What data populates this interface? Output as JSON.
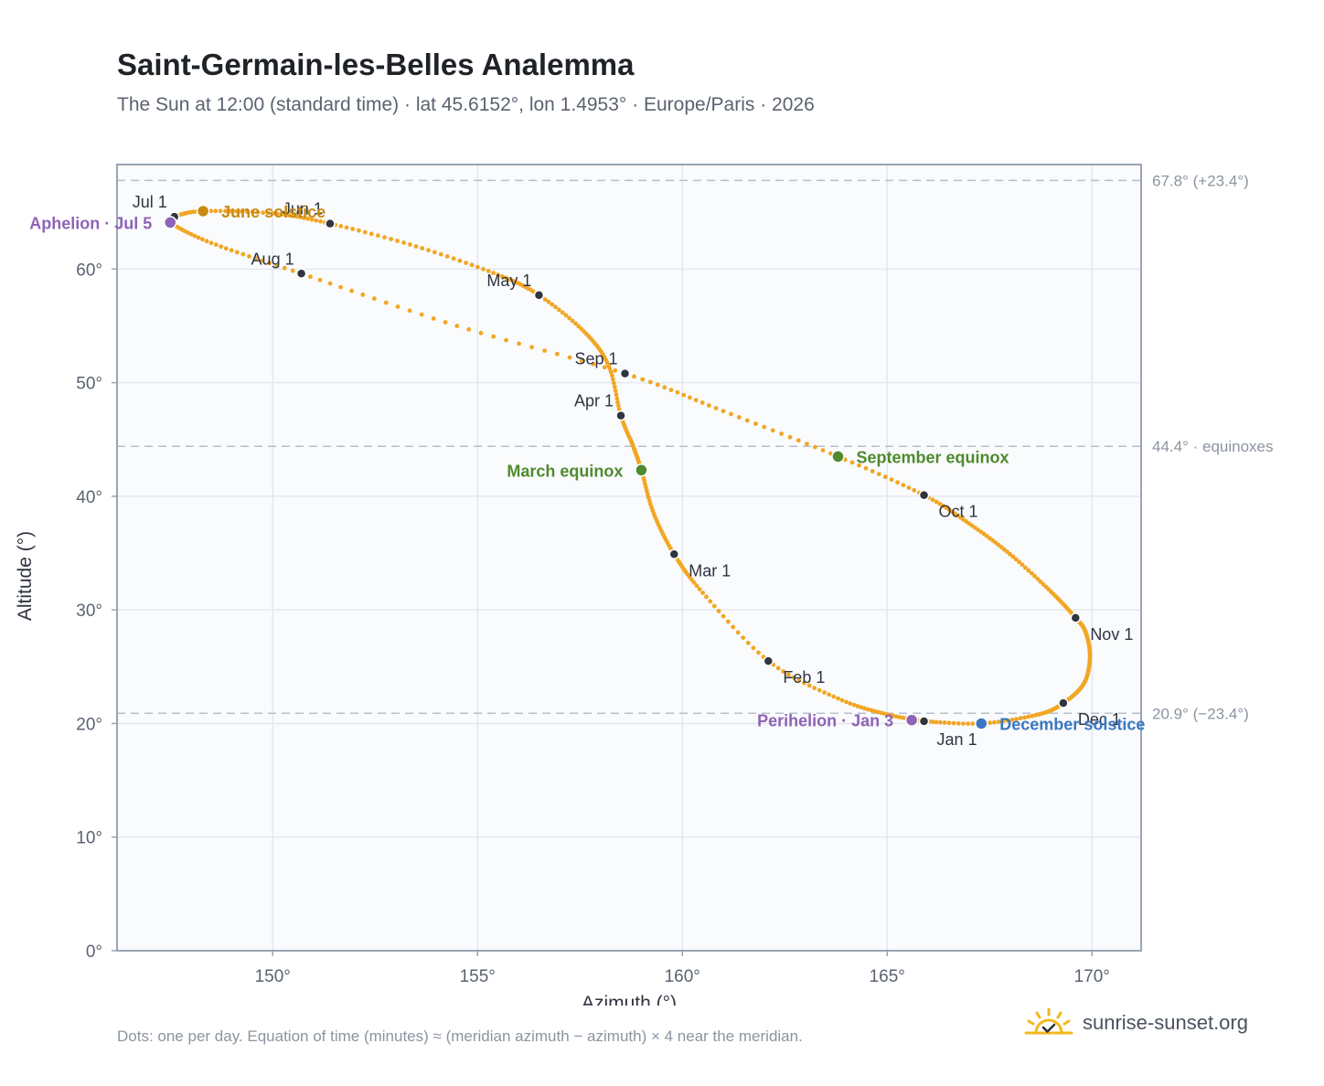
{
  "header": {
    "title": "Saint-Germain-les-Belles Analemma",
    "subtitle": "The Sun at 12:00 (standard time) · lat 45.6152°, lon 1.4953° · Europe/Paris · 2026"
  },
  "footer": {
    "note": "Dots: one per day. Equation of time (minutes) ≈ (meridian azimuth − azimuth) × 4 near the meridian.",
    "brand": "sunrise-sunset.org"
  },
  "colors": {
    "path": "#f2a623",
    "month_dot": "#2f3440",
    "solstice_june": "#c88a12",
    "solstice_december": "#3a78c2",
    "equinox": "#4f8a2e",
    "apsis": "#8e63b5",
    "grid": "#e4e8ee",
    "plot_bg": "#f9fbfd",
    "axis": "#9aa4b2"
  },
  "chart_data": {
    "type": "scatter",
    "xlabel": "Azimuth (°)",
    "ylabel": "Altitude (°)",
    "xlim": [
      146.2,
      171.2
    ],
    "ylim": [
      0,
      69.2
    ],
    "xticks": [
      150,
      155,
      160,
      165,
      170
    ],
    "yticks": [
      0,
      10,
      20,
      30,
      40,
      50,
      60
    ],
    "tick_suffix": "°",
    "grid": true,
    "reference_lines": [
      {
        "y": 67.8,
        "label": "67.8° (+23.4°)"
      },
      {
        "y": 44.4,
        "label": "44.4° · equinoxes"
      },
      {
        "y": 20.9,
        "label": "20.9° (−23.4°)"
      }
    ],
    "path_points": [
      {
        "x": 165.9,
        "y": 20.2
      },
      {
        "x": 167.3,
        "y": 20.0
      },
      {
        "x": 168.7,
        "y": 20.8
      },
      {
        "x": 169.3,
        "y": 21.8
      },
      {
        "x": 169.8,
        "y": 23.5
      },
      {
        "x": 169.95,
        "y": 25.8
      },
      {
        "x": 169.85,
        "y": 28.0
      },
      {
        "x": 169.6,
        "y": 29.3
      },
      {
        "x": 169.0,
        "y": 31.6
      },
      {
        "x": 168.0,
        "y": 34.9
      },
      {
        "x": 167.0,
        "y": 37.6
      },
      {
        "x": 165.9,
        "y": 40.1
      },
      {
        "x": 163.8,
        "y": 43.5
      },
      {
        "x": 161.0,
        "y": 47.5
      },
      {
        "x": 158.6,
        "y": 50.8
      },
      {
        "x": 154.5,
        "y": 55.0
      },
      {
        "x": 150.7,
        "y": 59.6
      },
      {
        "x": 148.5,
        "y": 62.3
      },
      {
        "x": 147.5,
        "y": 64.1
      },
      {
        "x": 147.6,
        "y": 64.6
      },
      {
        "x": 148.3,
        "y": 65.1
      },
      {
        "x": 150.0,
        "y": 64.9
      },
      {
        "x": 151.4,
        "y": 64.0
      },
      {
        "x": 153.5,
        "y": 62.0
      },
      {
        "x": 155.5,
        "y": 59.5
      },
      {
        "x": 156.5,
        "y": 57.7
      },
      {
        "x": 157.6,
        "y": 54.5
      },
      {
        "x": 158.2,
        "y": 51.5
      },
      {
        "x": 158.5,
        "y": 47.1
      },
      {
        "x": 158.8,
        "y": 44.4
      },
      {
        "x": 159.0,
        "y": 42.3
      },
      {
        "x": 159.3,
        "y": 38.5
      },
      {
        "x": 159.8,
        "y": 34.9
      },
      {
        "x": 160.5,
        "y": 31.5
      },
      {
        "x": 162.1,
        "y": 25.5
      },
      {
        "x": 163.8,
        "y": 22.2
      },
      {
        "x": 165.0,
        "y": 20.8
      },
      {
        "x": 165.9,
        "y": 20.2
      }
    ],
    "months": [
      {
        "label": "Jan 1",
        "x": 165.9,
        "y": 20.2,
        "pos": "below"
      },
      {
        "label": "Feb 1",
        "x": 162.1,
        "y": 25.5,
        "pos": "below-right"
      },
      {
        "label": "Mar 1",
        "x": 159.8,
        "y": 34.9,
        "pos": "below-right"
      },
      {
        "label": "Apr 1",
        "x": 158.5,
        "y": 47.1,
        "pos": "above-left"
      },
      {
        "label": "May 1",
        "x": 156.5,
        "y": 57.7,
        "pos": "above-left"
      },
      {
        "label": "Jun 1",
        "x": 151.4,
        "y": 64.0,
        "pos": "above-left"
      },
      {
        "label": "Jul 1",
        "x": 147.6,
        "y": 64.6,
        "pos": "above-left"
      },
      {
        "label": "Aug 1",
        "x": 150.7,
        "y": 59.6,
        "pos": "above-left"
      },
      {
        "label": "Sep 1",
        "x": 158.6,
        "y": 50.8,
        "pos": "above-left"
      },
      {
        "label": "Oct 1",
        "x": 165.9,
        "y": 40.1,
        "pos": "below-right"
      },
      {
        "label": "Nov 1",
        "x": 169.6,
        "y": 29.3,
        "pos": "below-right"
      },
      {
        "label": "Dec 1",
        "x": 169.3,
        "y": 21.8,
        "pos": "below-right"
      }
    ],
    "events": [
      {
        "label": "June solstice",
        "x": 148.3,
        "y": 65.1,
        "color_key": "solstice_june",
        "pos": "right"
      },
      {
        "label": "December solstice",
        "x": 167.3,
        "y": 20.0,
        "color_key": "solstice_december",
        "pos": "right"
      },
      {
        "label": "March equinox",
        "x": 159.0,
        "y": 42.3,
        "color_key": "equinox",
        "pos": "left"
      },
      {
        "label": "September equinox",
        "x": 163.8,
        "y": 43.5,
        "color_key": "equinox",
        "pos": "right"
      },
      {
        "label": "Aphelion · Jul 5",
        "x": 147.5,
        "y": 64.1,
        "color_key": "apsis",
        "pos": "left"
      },
      {
        "label": "Perihelion · Jan 3",
        "x": 165.6,
        "y": 20.3,
        "color_key": "apsis",
        "pos": "left"
      }
    ]
  }
}
